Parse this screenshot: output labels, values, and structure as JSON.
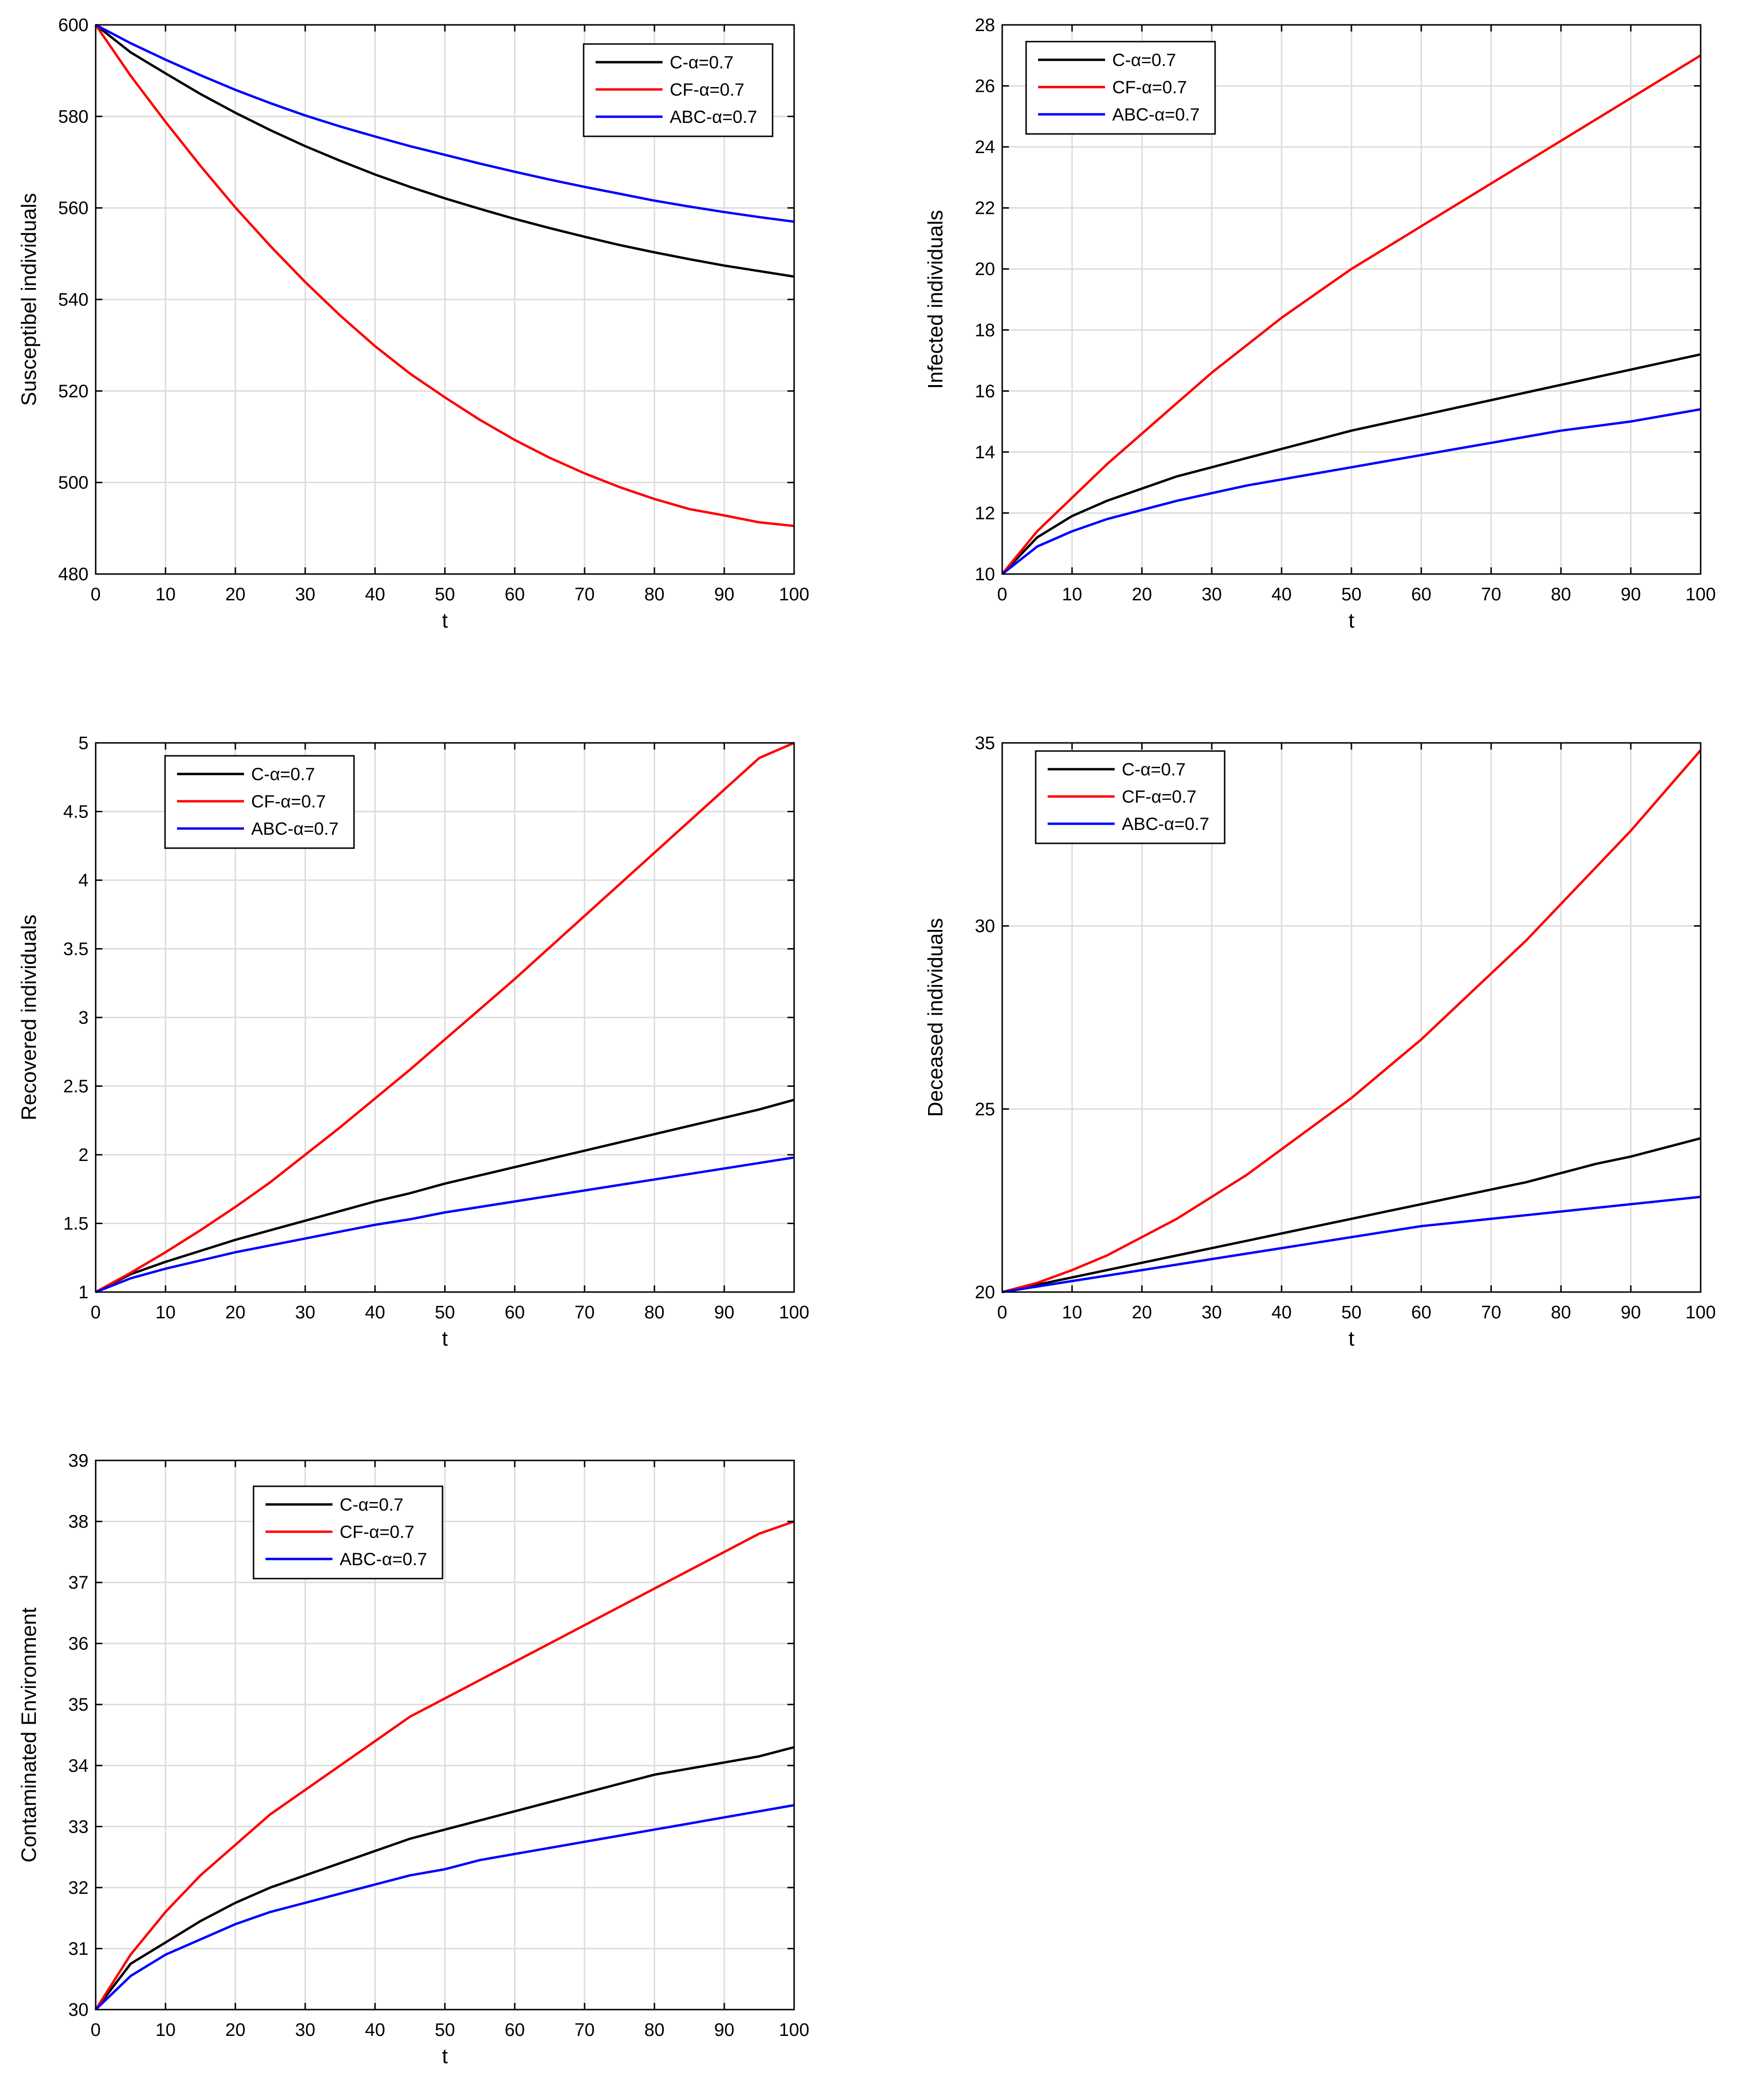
{
  "colors": {
    "black": "#000000",
    "red": "#ff0000",
    "blue": "#0000ff",
    "grid": "#dcdcdc"
  },
  "chart_data": [
    {
      "type": "line",
      "ylabel": "Susceptibel individuals",
      "xlabel": "t",
      "xlim": [
        0,
        100
      ],
      "ylim": [
        480,
        600
      ],
      "xticks": [
        0,
        10,
        20,
        30,
        40,
        50,
        60,
        70,
        80,
        90,
        100
      ],
      "yticks": [
        480,
        500,
        520,
        540,
        560,
        580,
        600
      ],
      "grid": true,
      "legend_position": "top-right",
      "x": [
        0,
        5,
        10,
        15,
        20,
        25,
        30,
        35,
        40,
        45,
        50,
        55,
        60,
        65,
        70,
        75,
        80,
        85,
        90,
        95,
        100
      ],
      "series": [
        {
          "name": "C-α=0.7",
          "color": "#000000",
          "values": [
            600,
            594,
            589.4,
            584.9,
            580.8,
            577,
            573.5,
            570.3,
            567.3,
            564.6,
            562.1,
            559.8,
            557.6,
            555.6,
            553.7,
            551.9,
            550.3,
            548.8,
            547.4,
            546.2,
            545
          ]
        },
        {
          "name": "CF-α=0.7",
          "color": "#ff0000",
          "values": [
            600,
            588.9,
            578.8,
            569.2,
            560.1,
            551.7,
            543.8,
            536.5,
            529.8,
            523.8,
            518.6,
            513.7,
            509.3,
            505.4,
            502,
            499,
            496.4,
            494.2,
            492.8,
            491.3,
            490.5
          ]
        },
        {
          "name": "ABC-α=0.7",
          "color": "#0000ff",
          "values": [
            600,
            596,
            592.4,
            589,
            585.8,
            582.9,
            580.2,
            577.8,
            575.6,
            573.5,
            571.6,
            569.7,
            567.9,
            566.2,
            564.6,
            563.1,
            561.6,
            560.3,
            559.1,
            558,
            557
          ]
        }
      ]
    },
    {
      "type": "line",
      "ylabel": "Infected individuals",
      "xlabel": "t",
      "xlim": [
        0,
        100
      ],
      "ylim": [
        10,
        28
      ],
      "xticks": [
        0,
        10,
        20,
        30,
        40,
        50,
        60,
        70,
        80,
        90,
        100
      ],
      "yticks": [
        10,
        12,
        14,
        16,
        18,
        20,
        22,
        24,
        26,
        28
      ],
      "grid": true,
      "legend_position": "top-left",
      "x": [
        0,
        5,
        10,
        15,
        20,
        25,
        30,
        35,
        40,
        45,
        50,
        55,
        60,
        65,
        70,
        75,
        80,
        85,
        90,
        95,
        100
      ],
      "series": [
        {
          "name": "C-α=0.7",
          "color": "#000000",
          "values": [
            10,
            11.2,
            11.9,
            12.4,
            12.8,
            13.2,
            13.5,
            13.8,
            14.1,
            14.4,
            14.7,
            14.95,
            15.2,
            15.45,
            15.7,
            15.95,
            16.2,
            16.45,
            16.7,
            16.95,
            17.2
          ]
        },
        {
          "name": "CF-α=0.7",
          "color": "#ff0000",
          "values": [
            10,
            11.4,
            12.5,
            13.6,
            14.6,
            15.6,
            16.6,
            17.5,
            18.4,
            19.2,
            20.0,
            20.7,
            21.4,
            22.1,
            22.8,
            23.5,
            24.2,
            24.9,
            25.6,
            26.3,
            27.0
          ]
        },
        {
          "name": "ABC-α=0.7",
          "color": "#0000ff",
          "values": [
            10,
            10.9,
            11.4,
            11.8,
            12.1,
            12.4,
            12.65,
            12.9,
            13.1,
            13.3,
            13.5,
            13.7,
            13.9,
            14.1,
            14.3,
            14.5,
            14.7,
            14.85,
            15.0,
            15.2,
            15.4
          ]
        }
      ]
    },
    {
      "type": "line",
      "ylabel": "Recovered individuals",
      "xlabel": "t",
      "xlim": [
        0,
        100
      ],
      "ylim": [
        1,
        5
      ],
      "xticks": [
        0,
        10,
        20,
        30,
        40,
        50,
        60,
        70,
        80,
        90,
        100
      ],
      "yticks": [
        1,
        1.5,
        2,
        2.5,
        3,
        3.5,
        4,
        4.5,
        5
      ],
      "grid": true,
      "legend_position": "top-left",
      "x": [
        0,
        5,
        10,
        15,
        20,
        25,
        30,
        35,
        40,
        45,
        50,
        55,
        60,
        65,
        70,
        75,
        80,
        85,
        90,
        95,
        100
      ],
      "series": [
        {
          "name": "C-α=0.7",
          "color": "#000000",
          "values": [
            1,
            1.13,
            1.22,
            1.3,
            1.38,
            1.45,
            1.52,
            1.59,
            1.66,
            1.72,
            1.79,
            1.85,
            1.91,
            1.97,
            2.03,
            2.09,
            2.15,
            2.21,
            2.27,
            2.33,
            2.4
          ]
        },
        {
          "name": "CF-α=0.7",
          "color": "#ff0000",
          "values": [
            1,
            1.14,
            1.29,
            1.45,
            1.62,
            1.8,
            2.0,
            2.2,
            2.41,
            2.62,
            2.84,
            3.06,
            3.28,
            3.51,
            3.74,
            3.97,
            4.2,
            4.43,
            4.66,
            4.89,
            5.0
          ]
        },
        {
          "name": "ABC-α=0.7",
          "color": "#0000ff",
          "values": [
            1,
            1.1,
            1.17,
            1.23,
            1.29,
            1.34,
            1.39,
            1.44,
            1.49,
            1.53,
            1.58,
            1.62,
            1.66,
            1.7,
            1.74,
            1.78,
            1.82,
            1.86,
            1.9,
            1.94,
            1.98
          ]
        }
      ]
    },
    {
      "type": "line",
      "ylabel": "Deceased individuals",
      "xlabel": "t",
      "xlim": [
        0,
        100
      ],
      "ylim": [
        20,
        35
      ],
      "xticks": [
        0,
        10,
        20,
        30,
        40,
        50,
        60,
        70,
        80,
        90,
        100
      ],
      "yticks": [
        20,
        25,
        30,
        35
      ],
      "grid": true,
      "legend_position": "top-left",
      "x": [
        0,
        5,
        10,
        15,
        20,
        25,
        30,
        35,
        40,
        45,
        50,
        55,
        60,
        65,
        70,
        75,
        80,
        85,
        90,
        95,
        100
      ],
      "series": [
        {
          "name": "C-α=0.7",
          "color": "#000000",
          "values": [
            20,
            20.2,
            20.4,
            20.6,
            20.8,
            21.0,
            21.2,
            21.4,
            21.6,
            21.8,
            22.0,
            22.2,
            22.4,
            22.6,
            22.8,
            23.0,
            23.25,
            23.5,
            23.7,
            23.95,
            24.2
          ]
        },
        {
          "name": "CF-α=0.7",
          "color": "#ff0000",
          "values": [
            20,
            20.25,
            20.6,
            21.0,
            21.5,
            22.0,
            22.6,
            23.2,
            23.9,
            24.6,
            25.3,
            26.1,
            26.9,
            27.8,
            28.7,
            29.6,
            30.6,
            31.6,
            32.6,
            33.7,
            34.8
          ]
        },
        {
          "name": "ABC-α=0.7",
          "color": "#0000ff",
          "values": [
            20,
            20.15,
            20.3,
            20.45,
            20.6,
            20.75,
            20.9,
            21.05,
            21.2,
            21.35,
            21.5,
            21.65,
            21.8,
            21.9,
            22.0,
            22.1,
            22.2,
            22.3,
            22.4,
            22.5,
            22.6
          ]
        }
      ]
    },
    {
      "type": "line",
      "ylabel": "Contaminated Environment",
      "xlabel": "t",
      "xlim": [
        0,
        100
      ],
      "ylim": [
        30,
        39
      ],
      "xticks": [
        0,
        10,
        20,
        30,
        40,
        50,
        60,
        70,
        80,
        90,
        100
      ],
      "yticks": [
        30,
        31,
        32,
        33,
        34,
        35,
        36,
        37,
        38,
        39
      ],
      "grid": true,
      "legend_position": "top-left",
      "x": [
        0,
        5,
        10,
        15,
        20,
        25,
        30,
        35,
        40,
        45,
        50,
        55,
        60,
        65,
        70,
        75,
        80,
        85,
        90,
        95,
        100
      ],
      "series": [
        {
          "name": "C-α=0.7",
          "color": "#000000",
          "values": [
            30,
            30.75,
            31.1,
            31.45,
            31.75,
            32.0,
            32.2,
            32.4,
            32.6,
            32.8,
            32.95,
            33.1,
            33.25,
            33.4,
            33.55,
            33.7,
            33.85,
            33.95,
            34.05,
            34.15,
            34.3
          ]
        },
        {
          "name": "CF-α=0.7",
          "color": "#ff0000",
          "values": [
            30,
            30.9,
            31.6,
            32.2,
            32.7,
            33.2,
            33.6,
            34.0,
            34.4,
            34.8,
            35.1,
            35.4,
            35.7,
            36.0,
            36.3,
            36.6,
            36.9,
            37.2,
            37.5,
            37.8,
            38.0
          ]
        },
        {
          "name": "ABC-α=0.7",
          "color": "#0000ff",
          "values": [
            30,
            30.55,
            30.9,
            31.15,
            31.4,
            31.6,
            31.75,
            31.9,
            32.05,
            32.2,
            32.3,
            32.45,
            32.55,
            32.65,
            32.75,
            32.85,
            32.95,
            33.05,
            33.15,
            33.25,
            33.35
          ]
        }
      ]
    }
  ]
}
